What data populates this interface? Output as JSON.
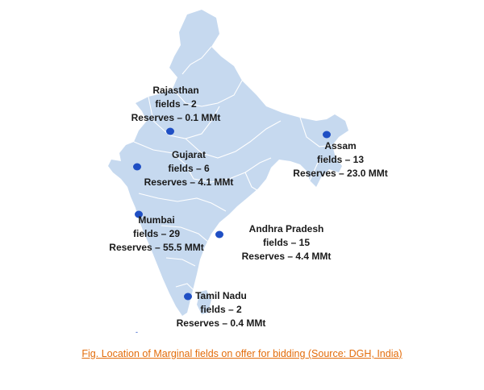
{
  "colors": {
    "land": "#c6d9ef",
    "border": "#ffffff",
    "marker": "#1f4fc4",
    "caption": "#e36c0a",
    "text": "#1a1a1a"
  },
  "locations": [
    {
      "name": "Rajasthan",
      "fields": "fields –  2",
      "reserves": "Reserves – 0.1 MMt"
    },
    {
      "name": "Gujarat",
      "fields": "fields –  6",
      "reserves": "Reserves – 4.1 MMt"
    },
    {
      "name": "Assam",
      "fields": "fields –  13",
      "reserves": "Reserves – 23.0 MMt"
    },
    {
      "name": "Mumbai",
      "fields": "fields –  29",
      "reserves": "Reserves – 55.5 MMt"
    },
    {
      "name": "Andhra Pradesh",
      "fields": "fields –  15",
      "reserves": "Reserves – 4.4 MMt"
    },
    {
      "name": "Tamil Nadu",
      "fields": "fields –  2",
      "reserves": "Reserves – 0.4 MMt"
    }
  ],
  "caption": "Fig. Location of Marginal fields on offer for bidding (Source: DGH, India)"
}
